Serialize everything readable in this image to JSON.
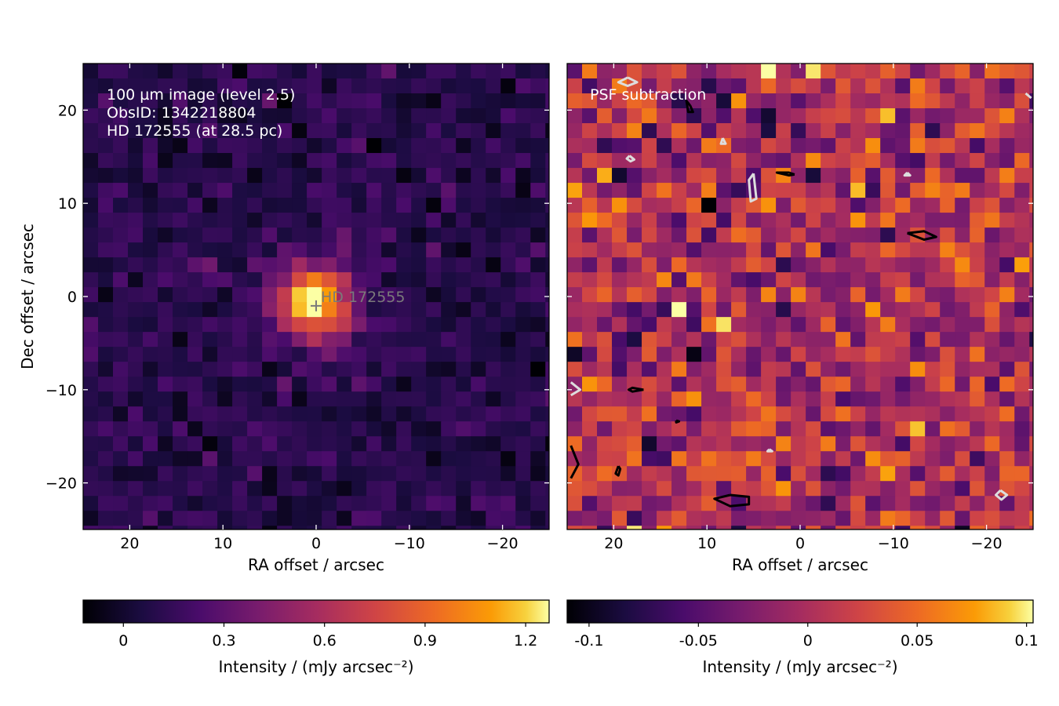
{
  "chart_data": [
    {
      "type": "heatmap",
      "panel": "left",
      "annotation_lines": [
        "100 µm image (level 2.5)",
        "ObsID: 1342218804",
        "HD 172555 (at 28.5 pc)"
      ],
      "xlabel": "RA offset / arcsec",
      "ylabel": "Dec offset / arcsec",
      "xlim": [
        25,
        -25
      ],
      "ylim": [
        -25,
        25
      ],
      "xticks": [
        20,
        10,
        0,
        -10,
        -20
      ],
      "xtick_labels": [
        "20",
        "10",
        "0",
        "−10",
        "−20"
      ],
      "yticks": [
        20,
        10,
        0,
        -10,
        -20
      ],
      "ytick_labels": [
        "20",
        "10",
        "0",
        "−10",
        "−20"
      ],
      "grid": false,
      "colormap": "inferno",
      "pixel_size_arcsec": 1.6,
      "star_marker": {
        "x": 0,
        "y": -1,
        "label": "HD 172555"
      },
      "source_model": {
        "peak": 1.2,
        "x0": 0.3,
        "y0": -0.5,
        "sigma": 2.8,
        "background": 0.1,
        "noise": 0.08
      },
      "colorbar": {
        "label": "Intensity / (mJy arcsec⁻²)",
        "vmin": -0.12,
        "vmax": 1.27,
        "ticks": [
          0,
          0.3,
          0.6,
          0.9,
          1.2
        ],
        "tick_labels": [
          "0",
          "0.3",
          "0.6",
          "0.9",
          "1.2"
        ]
      }
    },
    {
      "type": "heatmap",
      "panel": "right",
      "annotation_lines": [
        "PSF subtraction"
      ],
      "xlabel": "RA offset / arcsec",
      "xlim": [
        25,
        -25
      ],
      "ylim": [
        -25,
        25
      ],
      "xticks": [
        20,
        10,
        0,
        -10,
        -20
      ],
      "xtick_labels": [
        "20",
        "10",
        "0",
        "−10",
        "−20"
      ],
      "yticks": [
        20,
        10,
        0,
        -10,
        -20
      ],
      "grid": false,
      "colormap": "inferno",
      "pixel_size_arcsec": 1.6,
      "residual_model": {
        "mean": 0.0,
        "noise": 0.035,
        "min": -0.11,
        "max": 0.105
      },
      "contours": [
        {
          "color": "#000000",
          "points": [
            [
              7.5,
              -21.3
            ],
            [
              9.2,
              -21.7
            ],
            [
              7.5,
              -22.5
            ],
            [
              5.5,
              -22.3
            ],
            [
              5.5,
              -21.5
            ],
            [
              7.5,
              -21.3
            ]
          ]
        },
        {
          "color": "#000000",
          "points": [
            [
              -11.5,
              6.8
            ],
            [
              -13.3,
              6.1
            ],
            [
              -14.6,
              6.4
            ],
            [
              -13.3,
              7.0
            ],
            [
              -11.5,
              6.8
            ]
          ]
        },
        {
          "color": "#000000",
          "points": [
            [
              0.6,
              13.1
            ],
            [
              1.2,
              13.3
            ],
            [
              2.5,
              13.3
            ],
            [
              1.2,
              13.0
            ],
            [
              0.6,
              13.1
            ]
          ]
        },
        {
          "color": "#000000",
          "points": [
            [
              11.8,
              20.5
            ],
            [
              12.2,
              21.0
            ],
            [
              12.0,
              19.8
            ],
            [
              11.5,
              19.8
            ],
            [
              11.8,
              20.5
            ]
          ]
        },
        {
          "color": "#000000",
          "points": [
            [
              16.8,
              -10.0
            ],
            [
              18.0,
              -9.8
            ],
            [
              18.4,
              -10.0
            ],
            [
              18.0,
              -10.2
            ],
            [
              16.8,
              -10.0
            ]
          ]
        },
        {
          "color": "#000000",
          "points": [
            [
              19.5,
              -18.2
            ],
            [
              19.8,
              -19.0
            ],
            [
              19.5,
              -19.2
            ],
            [
              19.3,
              -18.5
            ],
            [
              19.5,
              -18.2
            ]
          ]
        },
        {
          "color": "#000000",
          "points": [
            [
              24.6,
              -16.0
            ],
            [
              23.8,
              -18.0
            ],
            [
              24.6,
              -19.5
            ]
          ]
        },
        {
          "color": "#000000",
          "points": [
            [
              13.3,
              -13.3
            ],
            [
              13.0,
              -13.4
            ],
            [
              13.3,
              -13.5
            ],
            [
              13.3,
              -13.3
            ]
          ]
        },
        {
          "color": "#dddddd",
          "points": [
            [
              5.0,
              13.2
            ],
            [
              4.7,
              10.5
            ],
            [
              5.3,
              10.2
            ],
            [
              5.5,
              12.5
            ],
            [
              5.0,
              13.2
            ]
          ]
        },
        {
          "color": "#dddddd",
          "points": [
            [
              18.5,
              23.5
            ],
            [
              17.5,
              23.0
            ],
            [
              18.5,
              22.6
            ],
            [
              19.5,
              23.0
            ],
            [
              18.5,
              23.5
            ]
          ]
        },
        {
          "color": "#dddddd",
          "points": [
            [
              8.3,
              17.0
            ],
            [
              8.0,
              16.4
            ],
            [
              8.5,
              16.4
            ],
            [
              8.3,
              17.0
            ]
          ]
        },
        {
          "color": "#dddddd",
          "points": [
            [
              18.3,
              15.1
            ],
            [
              17.8,
              14.7
            ],
            [
              18.2,
              14.5
            ],
            [
              18.6,
              14.8
            ],
            [
              18.3,
              15.1
            ]
          ]
        },
        {
          "color": "#dddddd",
          "points": [
            [
              -21.5,
              -20.8
            ],
            [
              -22.2,
              -21.3
            ],
            [
              -21.6,
              -21.8
            ],
            [
              -21.0,
              -21.3
            ],
            [
              -21.5,
              -20.8
            ]
          ]
        },
        {
          "color": "#dddddd",
          "points": [
            [
              24.6,
              -9.2
            ],
            [
              23.6,
              -10.0
            ],
            [
              24.6,
              -10.6
            ]
          ]
        },
        {
          "color": "#dddddd",
          "points": [
            [
              -24.2,
              21.8
            ],
            [
              -24.8,
              21.3
            ]
          ]
        },
        {
          "color": "#dddddd",
          "points": [
            [
              3.3,
              -16.4
            ],
            [
              3.0,
              -16.6
            ],
            [
              3.5,
              -16.6
            ],
            [
              3.3,
              -16.4
            ]
          ]
        },
        {
          "color": "#dddddd",
          "points": [
            [
              -11.5,
              13.3
            ],
            [
              -11.8,
              13.0
            ],
            [
              -11.2,
              13.0
            ],
            [
              -11.5,
              13.3
            ]
          ]
        }
      ],
      "colorbar": {
        "label": "Intensity / (mJy arcsec⁻²)",
        "vmin": -0.11,
        "vmax": 0.103,
        "ticks": [
          -0.1,
          -0.05,
          0,
          0.05,
          0.1
        ],
        "tick_labels": [
          "-0.1",
          "-0.05",
          "0",
          "0.05",
          "0.1"
        ]
      }
    }
  ]
}
